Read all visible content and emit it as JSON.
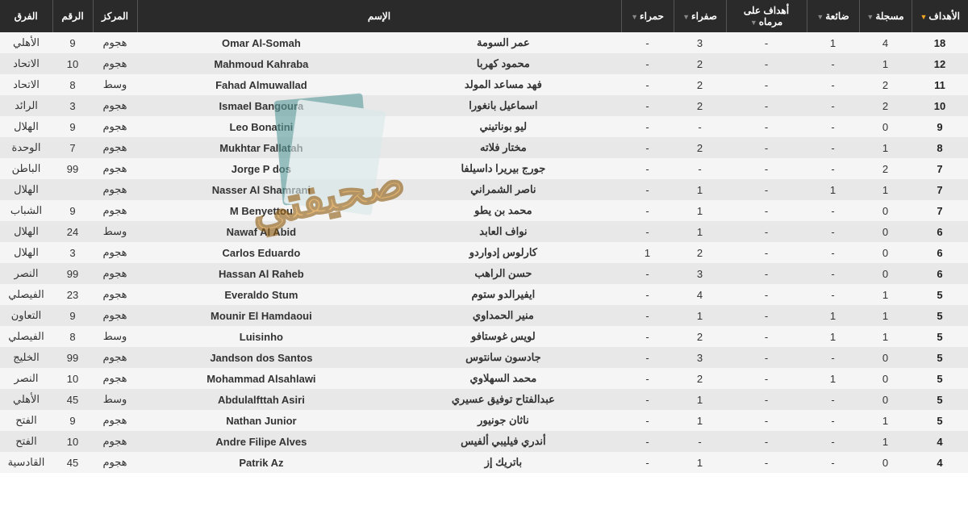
{
  "columns": {
    "goals": "الأهداف",
    "scored": "مسجلة",
    "missed": "ضائعة",
    "own": "أهداف على مرماه",
    "yellow": "صفراء",
    "red": "حمراء",
    "name": "الإسم",
    "pos": "المركز",
    "num": "الرقم",
    "team": "الفرق"
  },
  "rows": [
    {
      "goals": "18",
      "scored": "4",
      "missed": "1",
      "own": "-",
      "yellow": "3",
      "red": "-",
      "nAr": "عمر السومة",
      "nEn": "Omar Al-Somah",
      "pos": "هجوم",
      "num": "9",
      "team": "الأهلي"
    },
    {
      "goals": "12",
      "scored": "1",
      "missed": "-",
      "own": "-",
      "yellow": "2",
      "red": "-",
      "nAr": "محمود كهربا",
      "nEn": "Mahmoud Kahraba",
      "pos": "هجوم",
      "num": "10",
      "team": "الاتحاد"
    },
    {
      "goals": "11",
      "scored": "2",
      "missed": "-",
      "own": "-",
      "yellow": "2",
      "red": "-",
      "nAr": "فهد مساعد المولد",
      "nEn": "Fahad Almuwallad",
      "pos": "وسط",
      "num": "8",
      "team": "الاتحاد"
    },
    {
      "goals": "10",
      "scored": "2",
      "missed": "-",
      "own": "-",
      "yellow": "2",
      "red": "-",
      "nAr": "اسماعيل بانغورا",
      "nEn": "Ismael Bangoura",
      "pos": "هجوم",
      "num": "3",
      "team": "الرائد"
    },
    {
      "goals": "9",
      "scored": "0",
      "missed": "-",
      "own": "-",
      "yellow": "-",
      "red": "-",
      "nAr": "ليو بوناتيني",
      "nEn": "Leo Bonatini",
      "pos": "هجوم",
      "num": "9",
      "team": "الهلال"
    },
    {
      "goals": "8",
      "scored": "1",
      "missed": "-",
      "own": "-",
      "yellow": "2",
      "red": "-",
      "nAr": "مختار فلاته",
      "nEn": "Mukhtar Fallatah",
      "pos": "هجوم",
      "num": "7",
      "team": "الوحدة"
    },
    {
      "goals": "7",
      "scored": "2",
      "missed": "-",
      "own": "-",
      "yellow": "-",
      "red": "-",
      "nAr": "جورج بيريرا داسيلفا",
      "nEn": "Jorge P dos",
      "pos": "هجوم",
      "num": "99",
      "team": "الباطن"
    },
    {
      "goals": "7",
      "scored": "1",
      "missed": "1",
      "own": "-",
      "yellow": "1",
      "red": "-",
      "nAr": "ناصر الشمراني",
      "nEn": "Nasser Al Shamrani",
      "pos": "هجوم",
      "num": "",
      "team": "الهلال"
    },
    {
      "goals": "7",
      "scored": "0",
      "missed": "-",
      "own": "-",
      "yellow": "1",
      "red": "-",
      "nAr": "محمد بن يطو",
      "nEn": "M Benyettou",
      "pos": "هجوم",
      "num": "9",
      "team": "الشباب"
    },
    {
      "goals": "6",
      "scored": "0",
      "missed": "-",
      "own": "-",
      "yellow": "1",
      "red": "-",
      "nAr": "نواف العابد",
      "nEn": "Nawaf Al Abid",
      "pos": "وسط",
      "num": "24",
      "team": "الهلال"
    },
    {
      "goals": "6",
      "scored": "0",
      "missed": "-",
      "own": "-",
      "yellow": "2",
      "red": "1",
      "nAr": "كارلوس إدواردو",
      "nEn": "Carlos Eduardo",
      "pos": "هجوم",
      "num": "3",
      "team": "الهلال"
    },
    {
      "goals": "6",
      "scored": "0",
      "missed": "-",
      "own": "-",
      "yellow": "3",
      "red": "-",
      "nAr": "حسن الراهب",
      "nEn": "Hassan Al Raheb",
      "pos": "هجوم",
      "num": "99",
      "team": "النصر"
    },
    {
      "goals": "5",
      "scored": "1",
      "missed": "-",
      "own": "-",
      "yellow": "4",
      "red": "-",
      "nAr": "ايفيرالدو ستوم",
      "nEn": "Everaldo Stum",
      "pos": "هجوم",
      "num": "23",
      "team": "الفيصلي"
    },
    {
      "goals": "5",
      "scored": "1",
      "missed": "1",
      "own": "-",
      "yellow": "1",
      "red": "-",
      "nAr": "منير الحمداوي",
      "nEn": "Mounir El Hamdaoui",
      "pos": "هجوم",
      "num": "9",
      "team": "التعاون"
    },
    {
      "goals": "5",
      "scored": "1",
      "missed": "1",
      "own": "-",
      "yellow": "2",
      "red": "-",
      "nAr": "لويس غوستافو",
      "nEn": "Luisinho",
      "pos": "وسط",
      "num": "8",
      "team": "الفيصلي"
    },
    {
      "goals": "5",
      "scored": "0",
      "missed": "-",
      "own": "-",
      "yellow": "3",
      "red": "-",
      "nAr": "جادسون سانتوس",
      "nEn": "Jandson dos Santos",
      "pos": "هجوم",
      "num": "99",
      "team": "الخليج"
    },
    {
      "goals": "5",
      "scored": "0",
      "missed": "1",
      "own": "-",
      "yellow": "2",
      "red": "-",
      "nAr": "محمد السهلاوي",
      "nEn": "Mohammad Alsahlawi",
      "pos": "هجوم",
      "num": "10",
      "team": "النصر"
    },
    {
      "goals": "5",
      "scored": "0",
      "missed": "-",
      "own": "-",
      "yellow": "1",
      "red": "-",
      "nAr": "عبدالفتاح توفيق عسيري",
      "nEn": "Abdulalfttah Asiri",
      "pos": "وسط",
      "num": "45",
      "team": "الأهلي"
    },
    {
      "goals": "5",
      "scored": "1",
      "missed": "-",
      "own": "-",
      "yellow": "1",
      "red": "-",
      "nAr": "ناثان جونيور",
      "nEn": "Nathan Junior",
      "pos": "هجوم",
      "num": "9",
      "team": "الفتح"
    },
    {
      "goals": "4",
      "scored": "1",
      "missed": "-",
      "own": "-",
      "yellow": "-",
      "red": "-",
      "nAr": "أندري فيليبي ألفيس",
      "nEn": "Andre Filipe Alves",
      "pos": "هجوم",
      "num": "10",
      "team": "الفتح"
    },
    {
      "goals": "4",
      "scored": "0",
      "missed": "-",
      "own": "-",
      "yellow": "1",
      "red": "-",
      "nAr": "باتريك إز",
      "nEn": "Patrik Az",
      "pos": "هجوم",
      "num": "45",
      "team": "القادسية"
    }
  ],
  "style": {
    "header_bg": "#2a2a2a",
    "header_fg": "#ffffff",
    "row_odd": "#f5f5f5",
    "row_even": "#e8e8e8",
    "sort_active": "#f5a623"
  }
}
